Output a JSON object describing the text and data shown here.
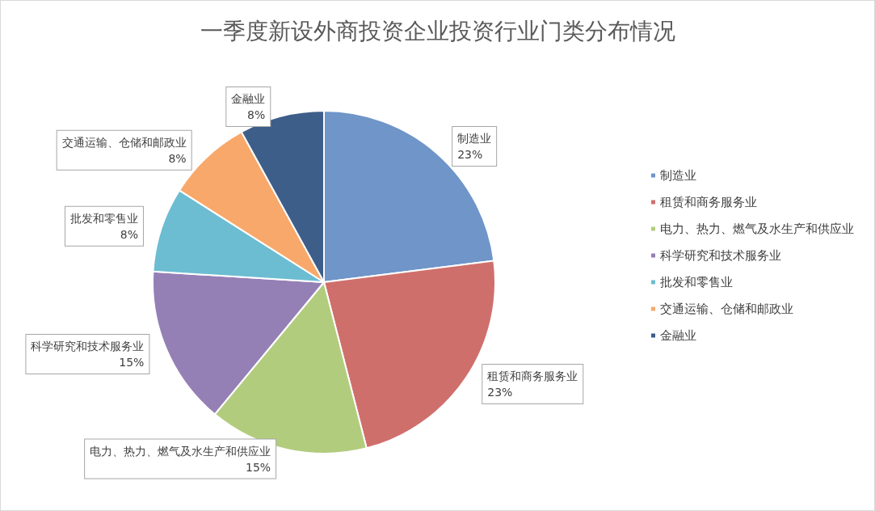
{
  "chart_data": {
    "type": "pie",
    "title": "一季度新设外商投资企业投资行业门类分布情况",
    "categories": [
      "制造业",
      "租赁和商务服务业",
      "电力、热力、燃气及水生产和供应业",
      "科学研究和技术服务业",
      "批发和零售业",
      "交通运输、仓储和邮政业",
      "金融业"
    ],
    "values": [
      23,
      23,
      15,
      15,
      8,
      8,
      8
    ],
    "value_labels": [
      "23%",
      "23%",
      "15%",
      "15%",
      "8%",
      "8%",
      "8%"
    ],
    "colors": [
      "#6f95c9",
      "#cf6f6c",
      "#b2cc7e",
      "#9580b5",
      "#6cbdd2",
      "#f8a86a",
      "#3e5e8a"
    ],
    "legend": "right"
  }
}
